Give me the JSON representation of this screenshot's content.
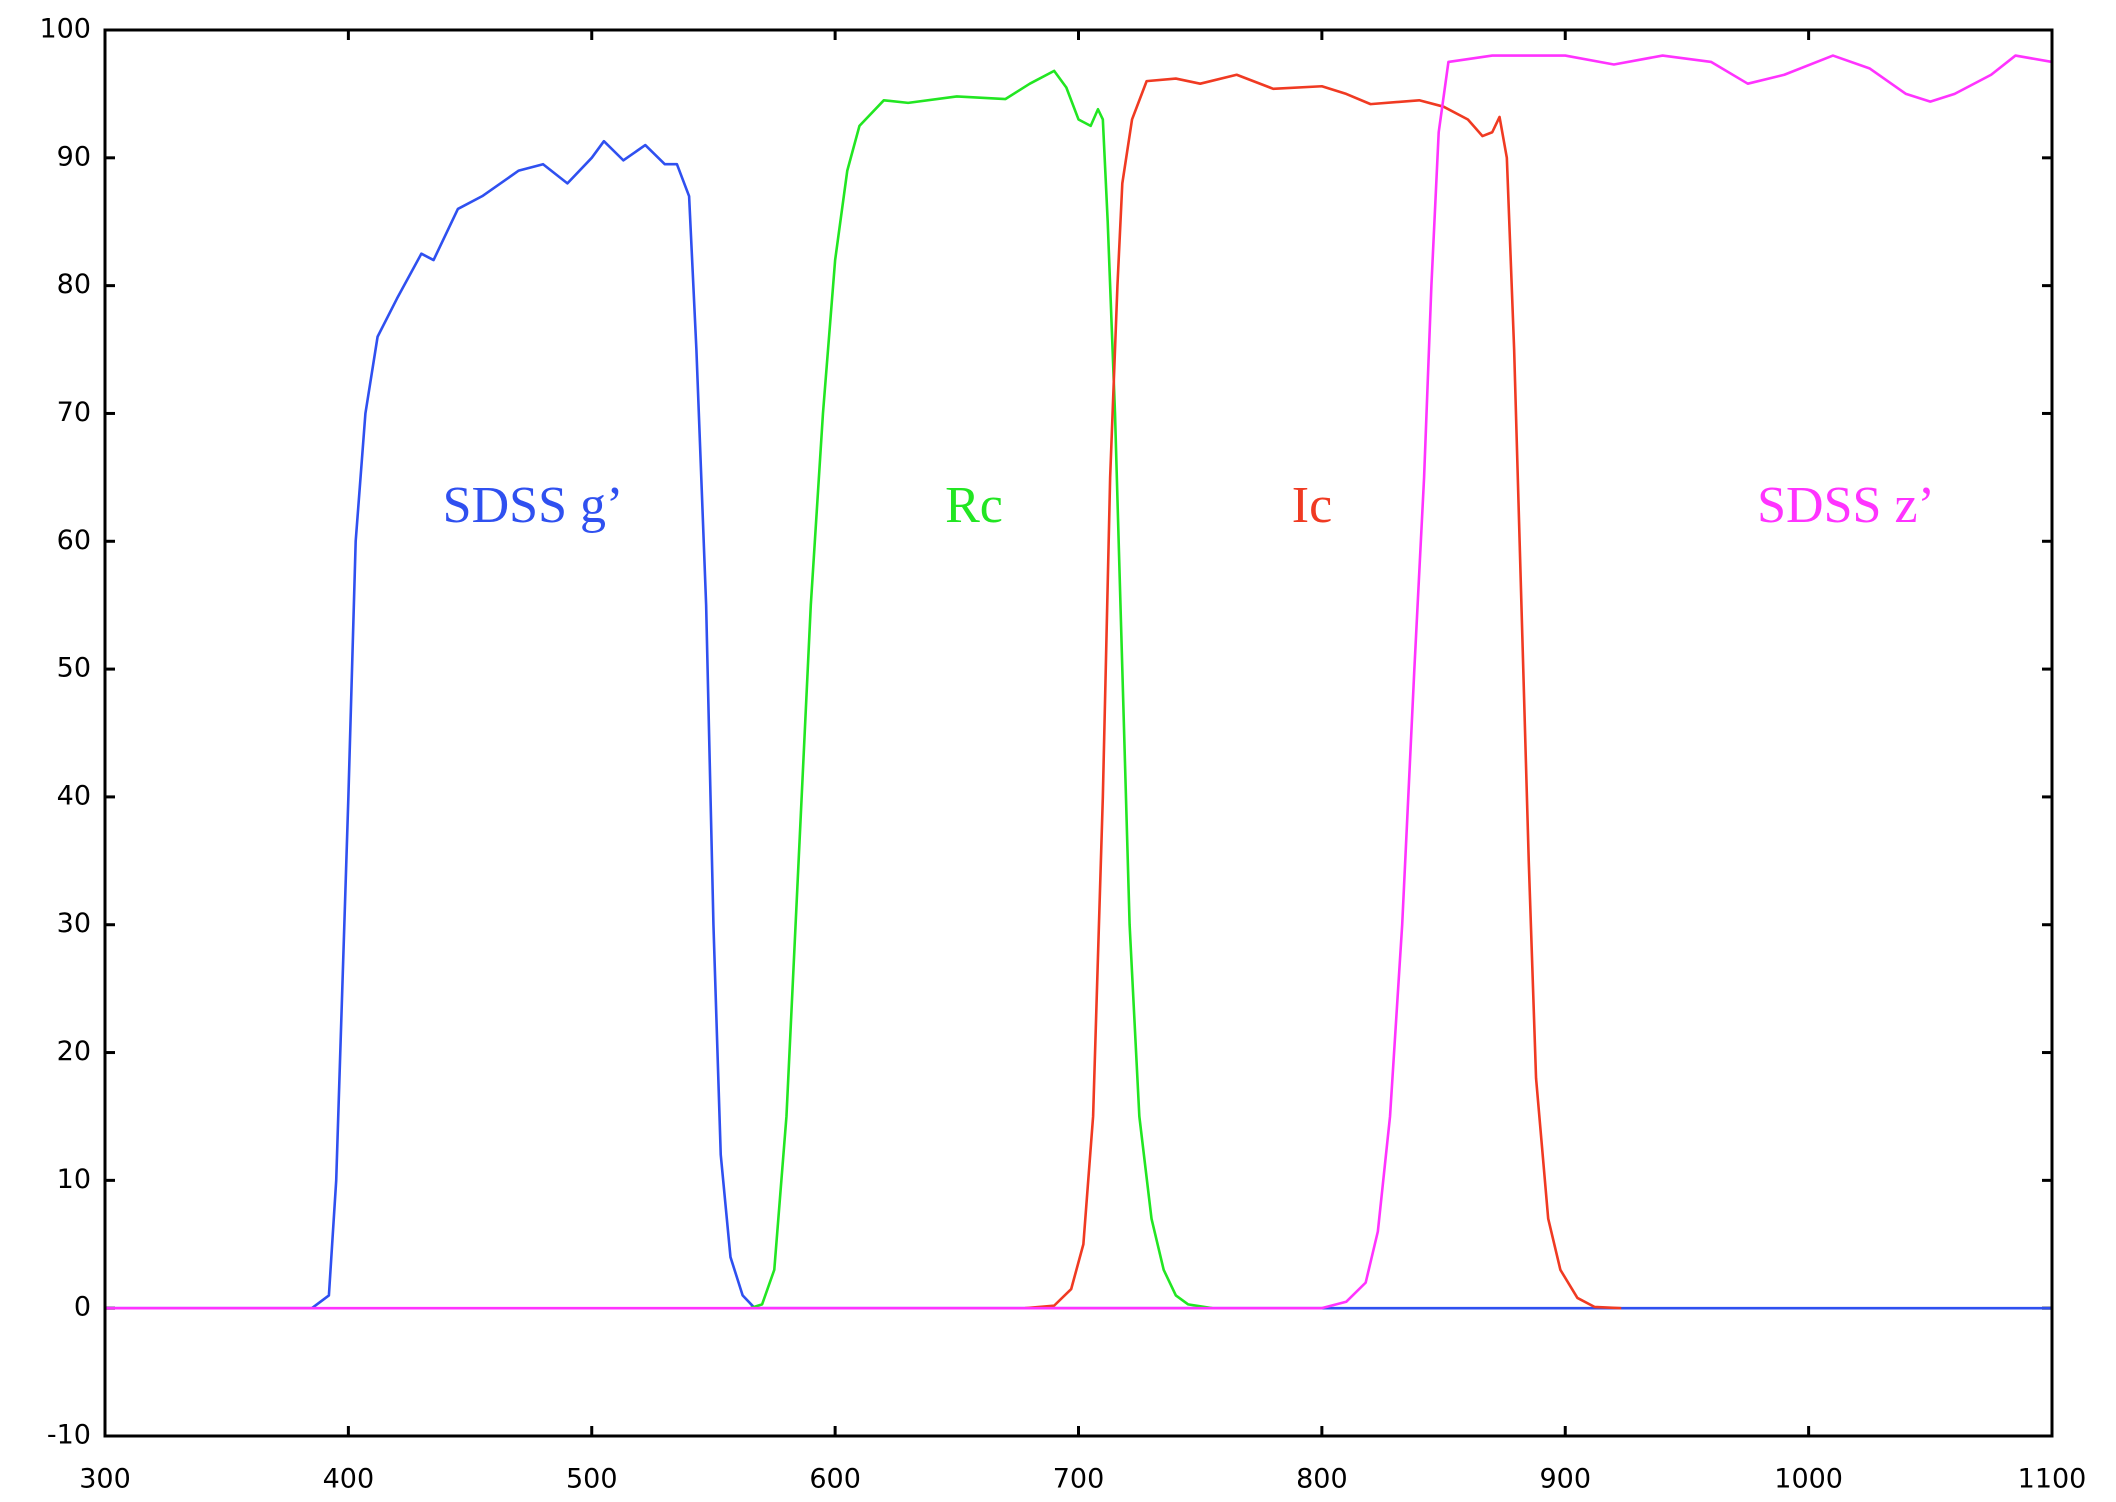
{
  "chart_data": {
    "type": "line",
    "xlim": [
      300,
      1100
    ],
    "ylim": [
      -10,
      100
    ],
    "xticks": [
      300,
      400,
      500,
      600,
      700,
      800,
      900,
      1000,
      1100
    ],
    "yticks": [
      -10,
      0,
      10,
      20,
      30,
      40,
      50,
      60,
      70,
      80,
      90,
      100
    ],
    "grid": false,
    "series": [
      {
        "name": "SDSS g’",
        "color": "#2f50f0",
        "x": [
          300,
          385,
          392,
          395,
          400,
          403,
          407,
          412,
          420,
          430,
          435,
          445,
          455,
          470,
          480,
          490,
          500,
          505,
          513,
          522,
          530,
          535,
          540,
          543,
          547,
          550,
          553,
          557,
          562,
          567,
          1100
        ],
        "values": [
          0,
          0,
          1,
          10,
          40,
          60,
          70,
          76,
          79,
          82.5,
          82,
          86,
          87,
          89,
          89.5,
          88,
          90,
          91.3,
          89.8,
          91,
          89.5,
          89.5,
          87,
          75,
          55,
          30,
          12,
          4,
          1,
          0,
          0
        ]
      },
      {
        "name": "Rc",
        "color": "#22e622",
        "x": [
          565,
          570,
          575,
          580,
          585,
          590,
          595,
          600,
          605,
          610,
          620,
          630,
          650,
          670,
          680,
          690,
          695,
          700,
          705,
          708,
          710,
          712,
          715,
          718,
          721,
          725,
          730,
          735,
          740,
          745,
          755
        ],
        "values": [
          0,
          0.3,
          3,
          15,
          35,
          55,
          70,
          82,
          89,
          92.5,
          94.5,
          94.3,
          94.8,
          94.6,
          95.8,
          96.8,
          95.5,
          93,
          92.5,
          93.8,
          93,
          85,
          70,
          50,
          30,
          15,
          7,
          3,
          1,
          0.3,
          0
        ]
      },
      {
        "name": "Ic",
        "color": "#f03a22",
        "x": [
          678,
          690,
          697,
          702,
          706,
          710,
          713,
          716,
          718,
          722,
          728,
          740,
          750,
          765,
          780,
          800,
          810,
          820,
          840,
          850,
          860,
          866,
          870,
          873,
          876,
          879,
          882,
          885,
          888,
          893,
          898,
          905,
          912,
          923
        ],
        "values": [
          0,
          0.2,
          1.5,
          5,
          15,
          40,
          65,
          80,
          88,
          93,
          96,
          96.2,
          95.8,
          96.5,
          95.4,
          95.6,
          95,
          94.2,
          94.5,
          94,
          93,
          91.7,
          92,
          93.2,
          90,
          75,
          55,
          35,
          18,
          7,
          3,
          0.8,
          0.1,
          0
        ]
      },
      {
        "name": "SDSS z’",
        "color": "#ff33ff",
        "x": [
          300,
          800,
          810,
          818,
          823,
          828,
          833,
          838,
          842,
          845,
          848,
          852,
          870,
          890,
          900,
          920,
          940,
          960,
          975,
          990,
          1010,
          1025,
          1040,
          1050,
          1060,
          1075,
          1085,
          1100
        ],
        "values": [
          0,
          0,
          0.5,
          2,
          6,
          15,
          30,
          50,
          65,
          80,
          92,
          97.5,
          98,
          98,
          98,
          97.3,
          98,
          97.5,
          95.8,
          96.5,
          98,
          97,
          95,
          94.4,
          95,
          96.5,
          98,
          97.5
        ]
      }
    ]
  }
}
